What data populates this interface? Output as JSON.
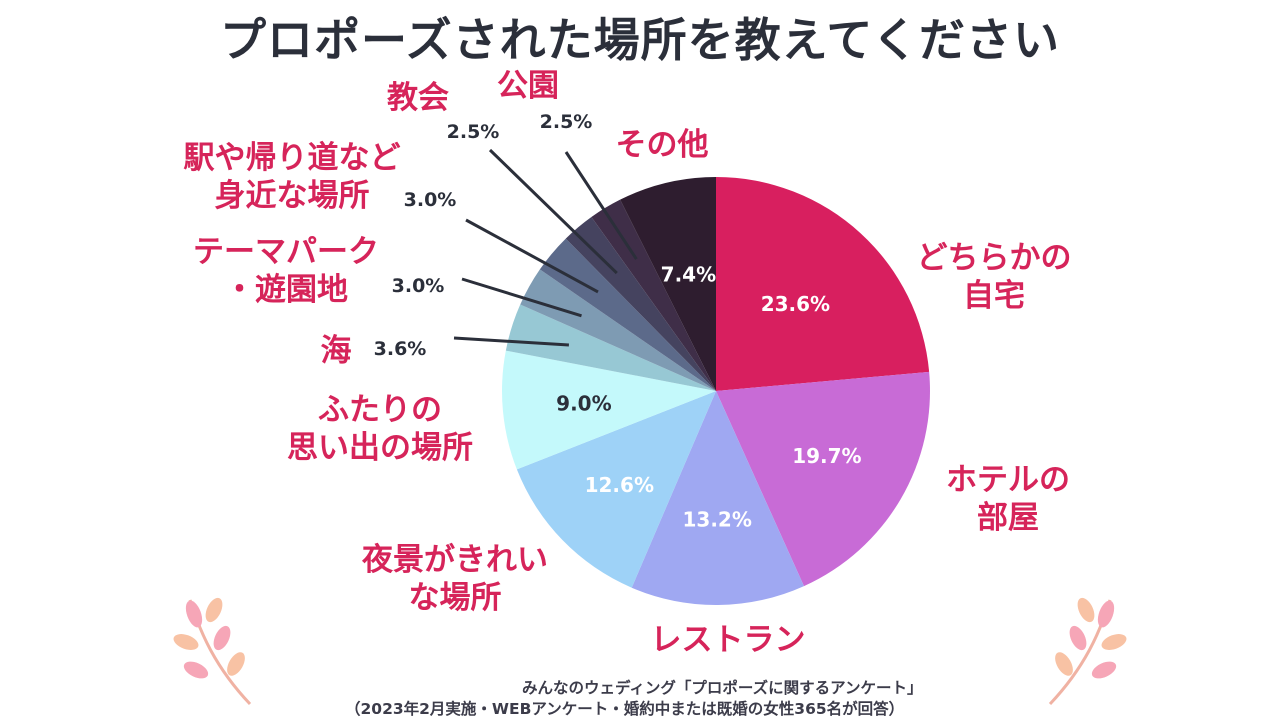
{
  "chart_data": {
    "type": "pie",
    "title": "プロポーズされた場所を教えてください",
    "slices": [
      {
        "name": "どちらかの自宅",
        "label_lines": [
          "どちらかの",
          "自宅"
        ],
        "value": 23.6,
        "display": "23.6%",
        "color": "#d81f5f"
      },
      {
        "name": "ホテルの部屋",
        "label_lines": [
          "ホテルの",
          "部屋"
        ],
        "value": 19.7,
        "display": "19.7%",
        "color": "#c86bd6"
      },
      {
        "name": "レストラン",
        "label_lines": [
          "レストラン"
        ],
        "value": 13.2,
        "display": "13.2%",
        "color": "#9fa8f2"
      },
      {
        "name": "夜景がきれいな場所",
        "label_lines": [
          "夜景がきれい",
          "な場所"
        ],
        "value": 12.6,
        "display": "12.6%",
        "color": "#9ed2f7"
      },
      {
        "name": "ふたりの思い出の場所",
        "label_lines": [
          "ふたりの",
          "思い出の場所"
        ],
        "value": 9.0,
        "display": "9.0%",
        "color": "#c4f9fb"
      },
      {
        "name": "海",
        "label_lines": [
          "海"
        ],
        "value": 3.6,
        "display": "3.6%",
        "color": "#97c8d4"
      },
      {
        "name": "テーマパーク・遊園地",
        "label_lines": [
          "テーマパーク",
          "・遊園地"
        ],
        "value": 3.0,
        "display": "3.0%",
        "color": "#7e9bb3"
      },
      {
        "name": "駅や帰り道など身近な場所",
        "label_lines": [
          "駅や帰り道など",
          "身近な場所"
        ],
        "value": 3.0,
        "display": "3.0%",
        "color": "#5c6a8a"
      },
      {
        "name": "教会",
        "label_lines": [
          "教会"
        ],
        "value": 2.5,
        "display": "2.5%",
        "color": "#45435f"
      },
      {
        "name": "公園",
        "label_lines": [
          "公園"
        ],
        "value": 2.5,
        "display": "2.5%",
        "color": "#3f2e48"
      },
      {
        "name": "その他",
        "label_lines": [
          "その他"
        ],
        "value": 7.4,
        "display": "7.4%",
        "color": "#2e1d2f"
      }
    ]
  },
  "source": {
    "line1": "みんなのウェディング「プロポーズに関するアンケート」",
    "line2": "（2023年2月実施・WEBアンケート・婚約中または既婚の女性365名が回答）"
  },
  "colors": {
    "title": "#2b2f3a",
    "label": "#d6245a",
    "pct_dark": "#2b2f3a",
    "leaf_pink": "#f6a6b7",
    "leaf_peach": "#f8c2a4"
  },
  "icons": [
    "leaf-branch-icon",
    "leaf-branch-icon"
  ]
}
